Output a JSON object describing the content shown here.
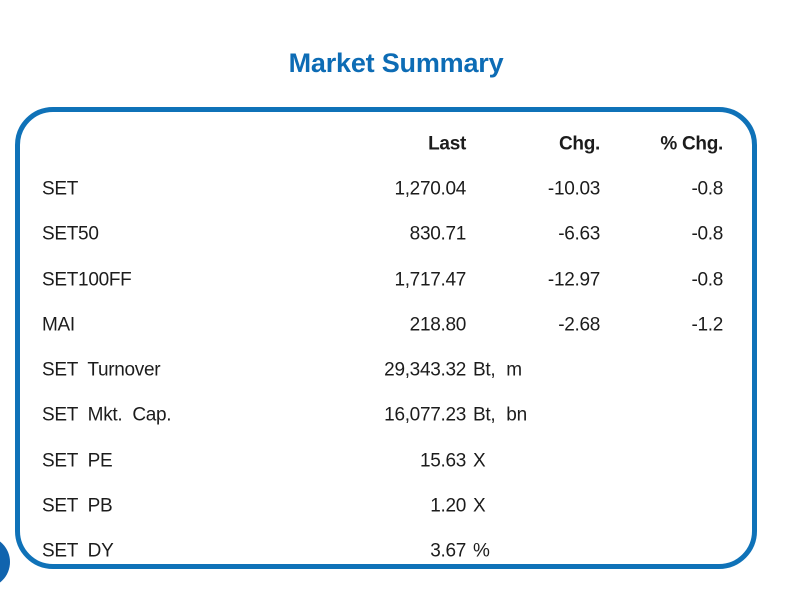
{
  "title": "Market Summary",
  "colors": {
    "title_blue": "#0d6cb5",
    "border_blue": "#0f72b8",
    "circle_blue": "#1164ae"
  },
  "table": {
    "columns": {
      "last": "Last",
      "chg": "Chg.",
      "pchg": "% Chg."
    },
    "rows": [
      {
        "label": "SET",
        "last": "1,270.04",
        "unit": "",
        "chg": "-10.03",
        "pchg": "-0.8"
      },
      {
        "label": "SET50",
        "last": "830.71",
        "unit": "",
        "chg": "-6.63",
        "pchg": "-0.8"
      },
      {
        "label": "SET100FF",
        "last": "1,717.47",
        "unit": "",
        "chg": "-12.97",
        "pchg": "-0.8"
      },
      {
        "label": "MAI",
        "last": "218.80",
        "unit": "",
        "chg": "-2.68",
        "pchg": "-1.2"
      },
      {
        "label": "SET Turnover",
        "last": "29,343.32",
        "unit": "Bt, m",
        "chg": "",
        "pchg": ""
      },
      {
        "label": "SET Mkt. Cap.",
        "last": "16,077.23",
        "unit": "Bt, bn",
        "chg": "",
        "pchg": ""
      },
      {
        "label": "SET PE",
        "last": "15.63",
        "unit": "X",
        "chg": "",
        "pchg": ""
      },
      {
        "label": "SET PB",
        "last": "1.20",
        "unit": "X",
        "chg": "",
        "pchg": ""
      },
      {
        "label": "SET DY",
        "last": "3.67",
        "unit": "%",
        "chg": "",
        "pchg": ""
      }
    ]
  }
}
